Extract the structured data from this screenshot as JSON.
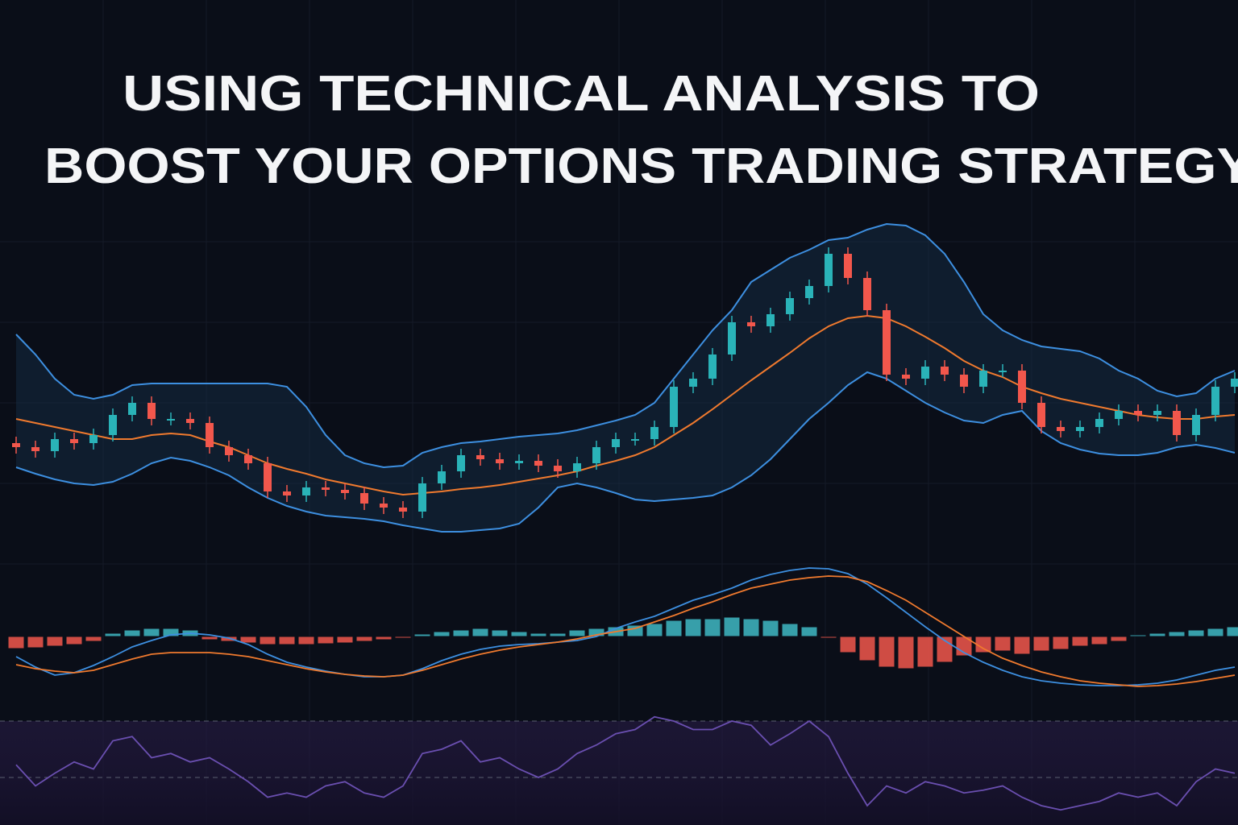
{
  "title_lines": [
    "USING TECHNICAL ANALYSIS TO",
    "BOOST YOUR OPTIONS TRADING STRATEGY"
  ],
  "chart_data": [
    {
      "type": "candlestick",
      "ylim": [
        0,
        450
      ],
      "up_color": "#2ab3b8",
      "down_color": "#f2574c",
      "open": [
        150,
        145,
        140,
        155,
        150,
        160,
        185,
        200,
        180,
        180,
        175,
        145,
        135,
        125,
        90,
        85,
        95,
        92,
        88,
        75,
        70,
        65,
        100,
        115,
        135,
        130,
        125,
        128,
        122,
        115,
        125,
        145,
        155,
        155,
        170,
        220,
        230,
        260,
        300,
        295,
        310,
        330,
        345,
        385,
        355,
        315,
        235,
        230,
        245,
        235,
        220,
        240,
        240,
        200,
        170,
        165,
        170,
        180,
        190,
        185,
        190,
        160,
        185,
        220
      ],
      "high": [
        158,
        153,
        163,
        163,
        168,
        193,
        208,
        208,
        188,
        188,
        183,
        153,
        143,
        133,
        98,
        103,
        103,
        100,
        96,
        83,
        78,
        108,
        123,
        143,
        143,
        138,
        136,
        136,
        130,
        133,
        153,
        163,
        163,
        178,
        228,
        238,
        268,
        308,
        308,
        318,
        338,
        353,
        393,
        393,
        363,
        323,
        243,
        253,
        253,
        243,
        248,
        248,
        248,
        208,
        178,
        178,
        188,
        198,
        198,
        198,
        198,
        193,
        228,
        238
      ],
      "low": [
        137,
        132,
        132,
        142,
        142,
        152,
        177,
        172,
        172,
        167,
        137,
        127,
        117,
        82,
        77,
        77,
        84,
        80,
        67,
        62,
        57,
        57,
        92,
        107,
        122,
        117,
        117,
        114,
        107,
        107,
        117,
        137,
        147,
        147,
        162,
        212,
        222,
        252,
        287,
        287,
        302,
        322,
        337,
        347,
        307,
        227,
        222,
        222,
        227,
        212,
        212,
        232,
        192,
        162,
        157,
        157,
        162,
        172,
        177,
        177,
        152,
        152,
        177,
        212
      ],
      "close": [
        145,
        140,
        155,
        150,
        160,
        185,
        200,
        180,
        180,
        175,
        145,
        135,
        125,
        90,
        85,
        95,
        92,
        88,
        75,
        70,
        65,
        100,
        115,
        135,
        130,
        125,
        128,
        122,
        115,
        125,
        145,
        155,
        155,
        170,
        220,
        230,
        260,
        300,
        295,
        310,
        330,
        345,
        385,
        355,
        315,
        235,
        230,
        245,
        235,
        220,
        240,
        240,
        200,
        170,
        165,
        170,
        180,
        190,
        185,
        190,
        160,
        185,
        220,
        230
      ],
      "series": [
        {
          "color": "#3d8fe0",
          "values": [
            285,
            260,
            230,
            210,
            205,
            210,
            222,
            224,
            224,
            224,
            224,
            224,
            224,
            224,
            220,
            195,
            160,
            135,
            125,
            120,
            122,
            138,
            145,
            150,
            152,
            155,
            158,
            160,
            162,
            166,
            172,
            178,
            185,
            200,
            230,
            260,
            290,
            315,
            350,
            365,
            380,
            390,
            402,
            405,
            415,
            422,
            420,
            408,
            385,
            350,
            310,
            290,
            278,
            270,
            267,
            264,
            255,
            240,
            230,
            215,
            208,
            212,
            230,
            240
          ]
        },
        {
          "color": "#f07a2e",
          "values": [
            180,
            175,
            170,
            165,
            160,
            155,
            155,
            160,
            162,
            160,
            152,
            145,
            135,
            125,
            118,
            112,
            105,
            100,
            95,
            90,
            86,
            88,
            90,
            93,
            95,
            98,
            102,
            106,
            110,
            115,
            122,
            128,
            135,
            145,
            160,
            175,
            192,
            210,
            228,
            245,
            262,
            280,
            295,
            305,
            308,
            305,
            295,
            282,
            268,
            252,
            240,
            232,
            220,
            212,
            205,
            200,
            195,
            190,
            185,
            182,
            180,
            180,
            183,
            185
          ]
        },
        {
          "color": "#3d8fe0",
          "values": [
            120,
            112,
            105,
            100,
            98,
            102,
            112,
            125,
            132,
            128,
            120,
            110,
            95,
            82,
            72,
            65,
            60,
            58,
            56,
            53,
            48,
            44,
            40,
            40,
            42,
            44,
            50,
            70,
            95,
            100,
            95,
            88,
            80,
            78,
            80,
            82,
            85,
            95,
            110,
            130,
            155,
            180,
            200,
            222,
            238,
            230,
            215,
            200,
            188,
            178,
            175,
            185,
            190,
            165,
            150,
            142,
            137,
            135,
            135,
            138,
            145,
            148,
            144,
            138
          ]
        }
      ]
    },
    {
      "type": "macd",
      "ylim": [
        -100,
        100
      ],
      "up_color": "#3fb8c4",
      "down_color": "#f2574c",
      "histogram": [
        -15,
        -14,
        -12,
        -10,
        -6,
        4,
        8,
        10,
        10,
        8,
        -4,
        -6,
        -8,
        -10,
        -10,
        -10,
        -9,
        -8,
        -6,
        -4,
        -2,
        3,
        6,
        8,
        10,
        8,
        6,
        4,
        4,
        8,
        10,
        12,
        14,
        16,
        20,
        22,
        22,
        24,
        22,
        20,
        16,
        12,
        -2,
        -20,
        -30,
        -38,
        -40,
        -38,
        -32,
        -24,
        -20,
        -18,
        -22,
        -18,
        -16,
        -12,
        -10,
        -6,
        2,
        4,
        6,
        8,
        10,
        12
      ],
      "series": [
        {
          "color": "#3d8fe0",
          "values": [
            -25,
            -38,
            -48,
            -45,
            -36,
            -25,
            -13,
            -5,
            2,
            4,
            2,
            -2,
            -10,
            -22,
            -32,
            -38,
            -43,
            -47,
            -50,
            -50,
            -48,
            -40,
            -30,
            -22,
            -16,
            -12,
            -10,
            -9,
            -7,
            -5,
            0,
            10,
            18,
            25,
            35,
            45,
            52,
            60,
            70,
            77,
            82,
            85,
            84,
            78,
            65,
            48,
            30,
            12,
            -5,
            -20,
            -32,
            -42,
            -50,
            -55,
            -58,
            -60,
            -61,
            -61,
            -60,
            -58,
            -54,
            -48,
            -42,
            -38
          ]
        },
        {
          "color": "#f07a2e",
          "values": [
            -35,
            -40,
            -43,
            -45,
            -42,
            -35,
            -28,
            -22,
            -20,
            -20,
            -20,
            -22,
            -25,
            -30,
            -35,
            -40,
            -44,
            -47,
            -49,
            -50,
            -48,
            -42,
            -35,
            -28,
            -22,
            -17,
            -13,
            -10,
            -7,
            -3,
            2,
            6,
            10,
            18,
            26,
            35,
            43,
            52,
            60,
            65,
            70,
            73,
            75,
            74,
            68,
            57,
            45,
            30,
            15,
            0,
            -15,
            -27,
            -36,
            -44,
            -50,
            -55,
            -58,
            -60,
            -62,
            -61,
            -59,
            -56,
            -52,
            -48
          ]
        }
      ]
    },
    {
      "type": "line",
      "ylim": [
        0,
        100
      ],
      "color": "#6a4fb0",
      "levels": [
        70,
        30
      ],
      "values": [
        39,
        24,
        33,
        41,
        36,
        56,
        59,
        44,
        47,
        41,
        44,
        36,
        27,
        16,
        19,
        16,
        24,
        27,
        19,
        16,
        24,
        47,
        50,
        56,
        41,
        44,
        36,
        30,
        36,
        47,
        53,
        61,
        64,
        73,
        70,
        64,
        64,
        70,
        67,
        53,
        61,
        70,
        59,
        33,
        10,
        24,
        19,
        27,
        24,
        19,
        21,
        24,
        16,
        10,
        7,
        10,
        13,
        19,
        16,
        19,
        10,
        27,
        36,
        33
      ]
    }
  ]
}
